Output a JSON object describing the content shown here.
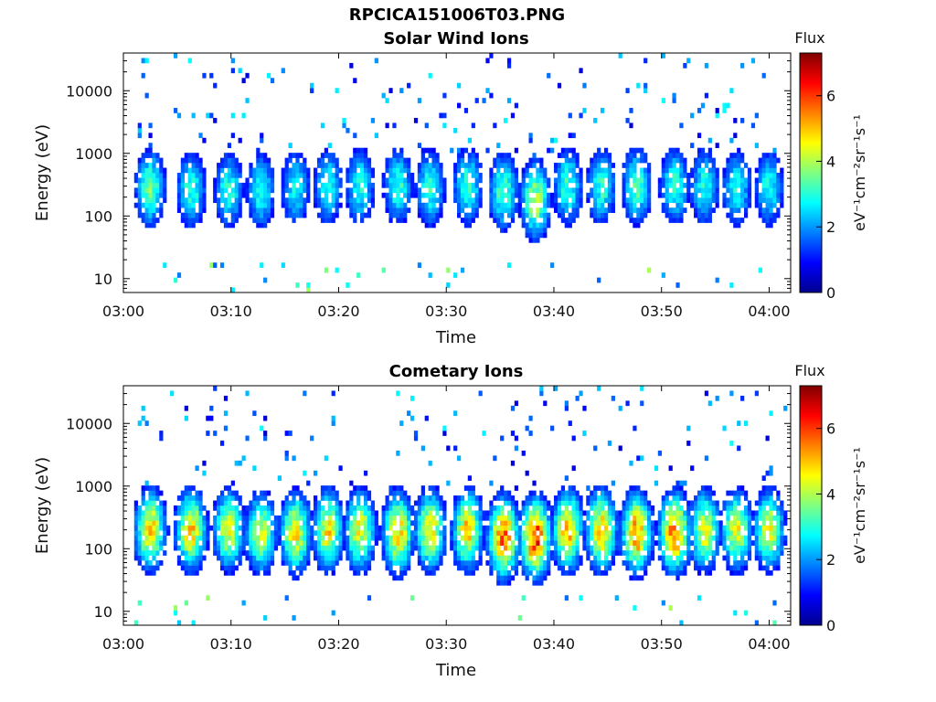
{
  "figure": {
    "title": "RPCICA151006T03.PNG"
  },
  "colorbar": {
    "label": "Flux",
    "unit": "eV⁻¹cm⁻²sr⁻¹s⁻¹",
    "ticks": [
      "0",
      "2",
      "4",
      "6"
    ],
    "range": [
      0,
      7.3
    ],
    "colormap": "jet"
  },
  "chart_data": [
    {
      "type": "heatmap",
      "title": "Solar Wind Ions",
      "xlabel": "Time",
      "ylabel": "Energy (eV)",
      "x_ticks": [
        "03:00",
        "03:10",
        "03:20",
        "03:30",
        "03:40",
        "03:50",
        "04:00"
      ],
      "y_ticks": [
        "10",
        "100",
        "1000",
        "10000"
      ],
      "y_scale": "log",
      "xlim": [
        "03:00",
        "04:02"
      ],
      "ylim": [
        6,
        40000
      ],
      "bursts_center_time_min": [
        2.5,
        6.3,
        9.8,
        12.8,
        16,
        19,
        22,
        25.5,
        28.5,
        32,
        35.3,
        38.3,
        41.3,
        44.4,
        47.7,
        51.2,
        54,
        57,
        60
      ],
      "bursts_center_energy_eV": [
        280,
        260,
        260,
        250,
        280,
        300,
        300,
        300,
        280,
        300,
        250,
        180,
        300,
        300,
        300,
        300,
        300,
        280,
        280
      ],
      "peak_flux": [
        3.4,
        3.0,
        2.9,
        2.8,
        2.7,
        2.8,
        2.9,
        3.0,
        3.0,
        3.1,
        3.3,
        3.9,
        3.1,
        3.0,
        3.2,
        3.0,
        2.9,
        2.9,
        2.8
      ]
    },
    {
      "type": "heatmap",
      "title": "Cometary Ions",
      "xlabel": "Time",
      "ylabel": "Energy (eV)",
      "x_ticks": [
        "03:00",
        "03:10",
        "03:20",
        "03:30",
        "03:40",
        "03:50",
        "04:00"
      ],
      "y_ticks": [
        "10",
        "100",
        "1000",
        "10000"
      ],
      "y_scale": "log",
      "xlim": [
        "03:00",
        "04:02"
      ],
      "ylim": [
        6,
        40000
      ],
      "bursts_center_time_min": [
        2.5,
        6.3,
        9.8,
        12.8,
        16,
        19,
        22,
        25.5,
        28.5,
        32,
        35.3,
        38.3,
        41.3,
        44.4,
        47.7,
        51.2,
        54,
        57,
        60
      ],
      "bursts_center_energy_eV": [
        200,
        200,
        200,
        180,
        180,
        200,
        200,
        180,
        200,
        200,
        150,
        150,
        200,
        200,
        180,
        180,
        200,
        200,
        200
      ],
      "peak_flux": [
        4.8,
        4.7,
        4.4,
        4.2,
        4.5,
        4.5,
        4.4,
        4.8,
        4.6,
        4.7,
        5.6,
        5.9,
        4.9,
        4.9,
        5.3,
        5.4,
        4.4,
        4.4,
        4.3
      ]
    }
  ]
}
